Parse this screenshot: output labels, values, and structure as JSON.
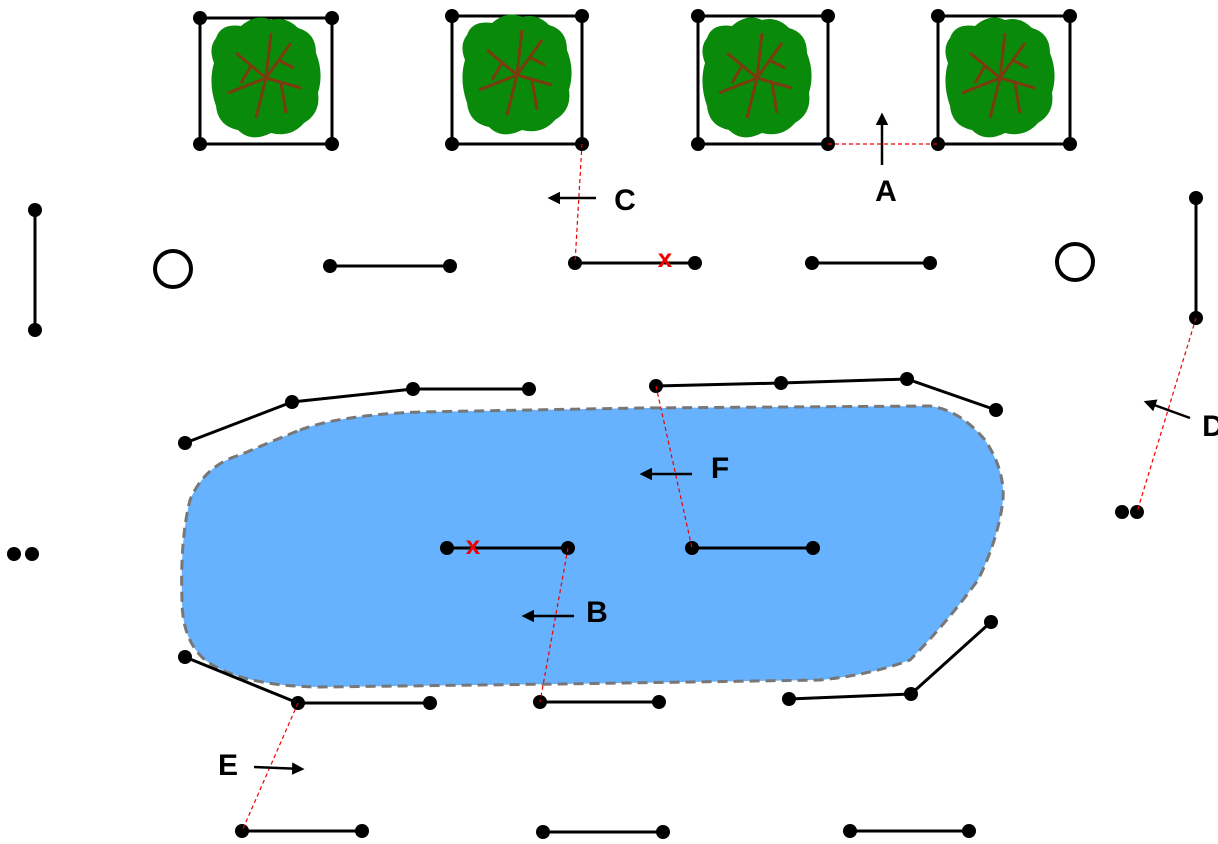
{
  "labels": [
    "A",
    "B",
    "C",
    "D",
    "E",
    "F"
  ],
  "markers": [
    "x",
    "x"
  ]
}
